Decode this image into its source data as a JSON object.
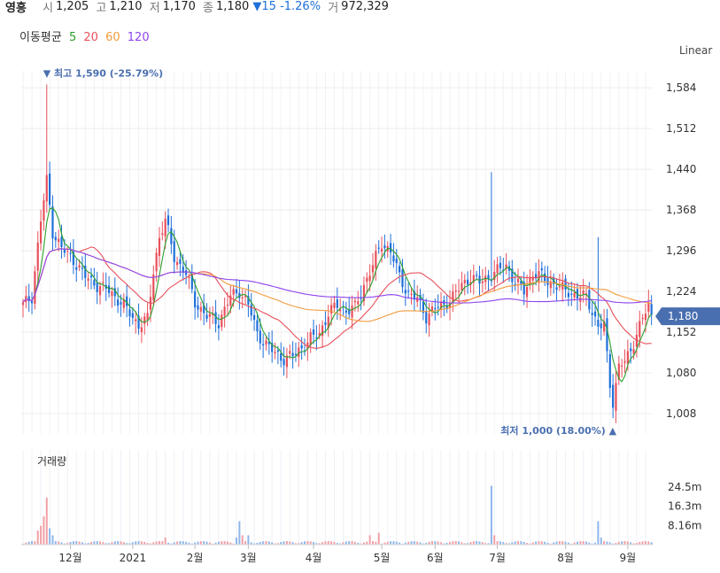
{
  "header": {
    "name": "영흥",
    "open_label": "시",
    "open": "1,205",
    "high_label": "고",
    "high": "1,210",
    "low_label": "저",
    "low": "1,170",
    "close_label": "종",
    "close": "1,180",
    "change_arrow": "▼",
    "change": "15",
    "change_pct": "-1.26%",
    "volume_label": "거",
    "volume": "972,329"
  },
  "ma_legend": {
    "label": "이동평균",
    "items": [
      {
        "period": "5",
        "color": "#2ca02c"
      },
      {
        "period": "20",
        "color": "#e8505b"
      },
      {
        "period": "60",
        "color": "#f39c3d"
      },
      {
        "period": "120",
        "color": "#8e44ef"
      }
    ]
  },
  "scale_mode": "Linear",
  "colors": {
    "up": "#e8505b",
    "down": "#1e6fd9",
    "tag_bg": "#4a6fb0"
  },
  "chart_data": {
    "type": "candlestick",
    "price_ticks": [
      1584,
      1512,
      1440,
      1368,
      1296,
      1224,
      1152,
      1080,
      1008
    ],
    "price_tick_labels": [
      "1,584",
      "1,512",
      "1,440",
      "1,368",
      "1,296",
      "1,224",
      "1,152",
      "1,080",
      "1,008"
    ],
    "ylim": [
      972,
      1614
    ],
    "x_labels": [
      "12월",
      "2021",
      "2월",
      "3월",
      "4월",
      "5월",
      "6월",
      "7월",
      "8월",
      "9월"
    ],
    "current_price": 1180,
    "current_price_label": "1,180",
    "max_annotation": {
      "marker": "▼",
      "text": "최고 1,590 (-25.79%)",
      "value": 1590
    },
    "min_annotation": {
      "marker": "▲",
      "text": "최저 1,000 (18.00%)",
      "value": 1000
    },
    "close_path": [
      [
        0,
        1200
      ],
      [
        3,
        1215
      ],
      [
        6,
        1350
      ],
      [
        8,
        1420
      ],
      [
        10,
        1330
      ],
      [
        13,
        1300
      ],
      [
        17,
        1280
      ],
      [
        21,
        1250
      ],
      [
        25,
        1235
      ],
      [
        29,
        1225
      ],
      [
        33,
        1205
      ],
      [
        36,
        1185
      ],
      [
        39,
        1165
      ],
      [
        42,
        1175
      ],
      [
        44,
        1260
      ],
      [
        46,
        1320
      ],
      [
        48,
        1350
      ],
      [
        51,
        1285
      ],
      [
        55,
        1255
      ],
      [
        58,
        1205
      ],
      [
        62,
        1180
      ],
      [
        66,
        1170
      ],
      [
        70,
        1215
      ],
      [
        73,
        1225
      ],
      [
        76,
        1200
      ],
      [
        79,
        1150
      ],
      [
        82,
        1130
      ],
      [
        85,
        1115
      ],
      [
        88,
        1105
      ],
      [
        91,
        1110
      ],
      [
        94,
        1125
      ],
      [
        97,
        1140
      ],
      [
        100,
        1150
      ],
      [
        103,
        1185
      ],
      [
        106,
        1200
      ],
      [
        109,
        1190
      ],
      [
        112,
        1195
      ],
      [
        115,
        1235
      ],
      [
        118,
        1270
      ],
      [
        121,
        1310
      ],
      [
        124,
        1295
      ],
      [
        127,
        1250
      ],
      [
        130,
        1220
      ],
      [
        133,
        1210
      ],
      [
        136,
        1180
      ],
      [
        139,
        1195
      ],
      [
        142,
        1200
      ],
      [
        145,
        1215
      ],
      [
        148,
        1235
      ],
      [
        151,
        1250
      ],
      [
        154,
        1240
      ],
      [
        157,
        1250
      ],
      [
        160,
        1260
      ],
      [
        163,
        1270
      ],
      [
        166,
        1240
      ],
      [
        169,
        1225
      ],
      [
        172,
        1255
      ],
      [
        175,
        1250
      ],
      [
        178,
        1240
      ],
      [
        181,
        1230
      ],
      [
        184,
        1225
      ],
      [
        187,
        1215
      ],
      [
        190,
        1215
      ],
      [
        192,
        1190
      ],
      [
        194,
        1160
      ],
      [
        196,
        1165
      ],
      [
        197,
        1110
      ],
      [
        198,
        1060
      ],
      [
        199,
        1030
      ],
      [
        200,
        1060
      ],
      [
        201,
        1090
      ],
      [
        203,
        1100
      ],
      [
        205,
        1120
      ],
      [
        207,
        1150
      ],
      [
        209,
        1175
      ],
      [
        211,
        1200
      ],
      [
        212,
        1180
      ]
    ],
    "volume": {
      "title": "거래량",
      "ticks": [
        "24.5m",
        "16.3m",
        "8.16m"
      ],
      "tick_values": [
        24.5,
        16.3,
        8.16
      ],
      "ymax": 32,
      "spikes": [
        [
          5,
          6
        ],
        [
          6,
          8
        ],
        [
          7,
          12
        ],
        [
          8,
          20
        ],
        [
          9,
          7
        ],
        [
          10,
          4
        ],
        [
          48,
          3
        ],
        [
          72,
          3
        ],
        [
          73,
          10
        ],
        [
          74,
          4
        ],
        [
          76,
          4
        ],
        [
          117,
          4
        ],
        [
          120,
          5
        ],
        [
          158,
          25
        ],
        [
          159,
          4
        ],
        [
          194,
          10
        ],
        [
          195,
          3
        ]
      ]
    }
  }
}
